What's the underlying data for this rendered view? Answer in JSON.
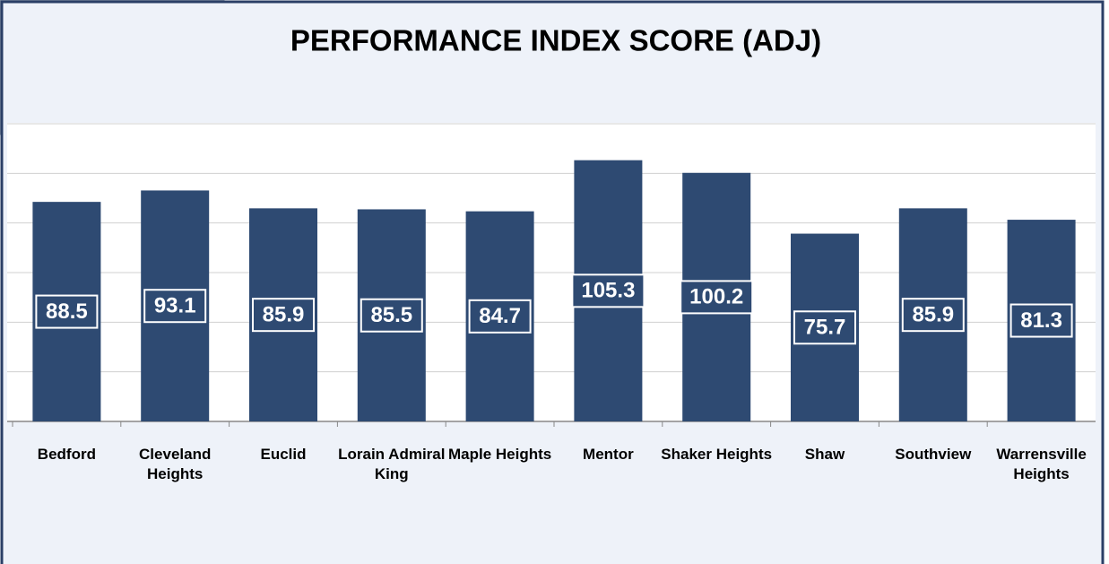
{
  "chart_data": {
    "type": "bar",
    "title": "PERFORMANCE INDEX SCORE (ADJ)",
    "categories": [
      "Bedford",
      "Cleveland Heights",
      "Euclid",
      "Lorain Admiral King",
      "Maple Heights",
      "Mentor",
      "Shaker Heights",
      "Shaw",
      "Southview",
      "Warrensville Heights"
    ],
    "values": [
      88.5,
      93.1,
      85.9,
      85.5,
      84.7,
      105.3,
      100.2,
      75.7,
      85.9,
      81.3
    ],
    "color": "#2e4a72",
    "ylim": [
      0,
      120
    ],
    "yticks": [
      0,
      20,
      40,
      60,
      80,
      100,
      120
    ],
    "grid": true
  }
}
